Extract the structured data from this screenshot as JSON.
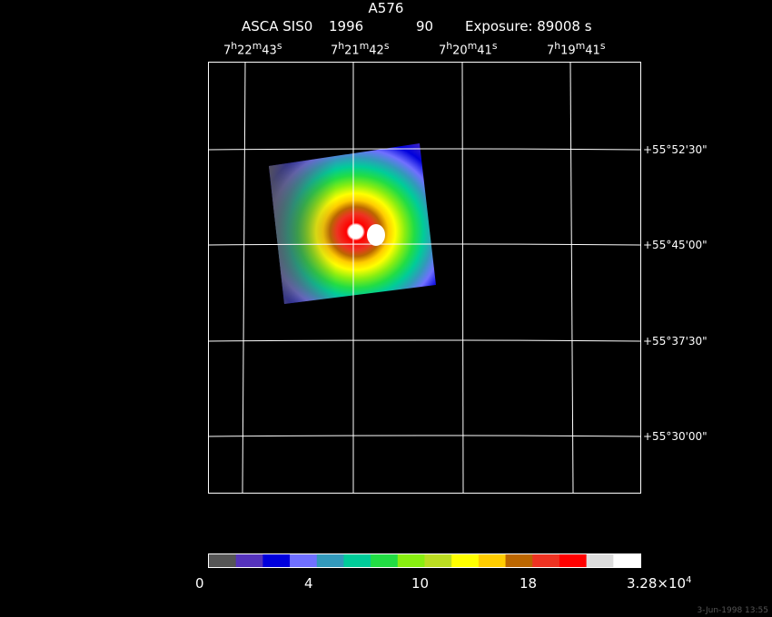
{
  "header": {
    "title": "A576",
    "instrument": "ASCA SIS0",
    "year": "1996",
    "number": "90",
    "exposure": "Exposure: 89008 s"
  },
  "ra_axis": {
    "ticks": [
      {
        "h": "7",
        "m": "22",
        "s": "43"
      },
      {
        "h": "7",
        "m": "21",
        "s": "42"
      },
      {
        "h": "7",
        "m": "20",
        "s": "41"
      },
      {
        "h": "7",
        "m": "19",
        "s": "41"
      }
    ]
  },
  "dec_axis": {
    "ticks": [
      "+55°52'30\"",
      "+55°45'00\"",
      "+55°37'30\"",
      "+55°30'00\""
    ]
  },
  "colorbar": {
    "colors": [
      "#555555",
      "#5533bb",
      "#0000dd",
      "#7070ff",
      "#3399bb",
      "#00cc99",
      "#22dd44",
      "#88ee11",
      "#bbdd22",
      "#ffff00",
      "#ffcc00",
      "#bb6600",
      "#ee3322",
      "#ff0000",
      "#dddddd",
      "#ffffff"
    ],
    "labels": {
      "l0": "0",
      "l1": "4",
      "l2": "10",
      "l3": "18",
      "l4_base": "3.28×10",
      "l4_exp": "4"
    }
  },
  "footer": {
    "timestamp": "3-Jun-1998 13:55"
  }
}
